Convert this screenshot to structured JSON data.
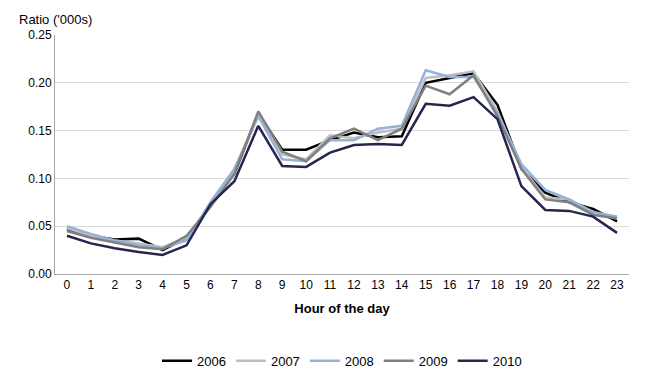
{
  "chart_data": {
    "type": "line",
    "y_label": "Ratio ('000s)",
    "x_label": "Hour of the day",
    "categories": [
      "0",
      "1",
      "2",
      "3",
      "4",
      "5",
      "6",
      "7",
      "8",
      "9",
      "10",
      "11",
      "12",
      "13",
      "14",
      "15",
      "16",
      "17",
      "18",
      "19",
      "20",
      "21",
      "22",
      "23"
    ],
    "series": [
      {
        "name": "2006",
        "color": "#000000",
        "values": [
          0.047,
          0.04,
          0.036,
          0.037,
          0.025,
          0.038,
          0.072,
          0.105,
          0.168,
          0.13,
          0.13,
          0.14,
          0.148,
          0.143,
          0.144,
          0.2,
          0.205,
          0.21,
          0.177,
          0.11,
          0.085,
          0.075,
          0.068,
          0.055
        ]
      },
      {
        "name": "2007",
        "color": "#bfbfbf",
        "values": [
          0.048,
          0.04,
          0.035,
          0.032,
          0.028,
          0.038,
          0.072,
          0.108,
          0.167,
          0.125,
          0.12,
          0.145,
          0.142,
          0.148,
          0.152,
          0.205,
          0.208,
          0.212,
          0.17,
          0.112,
          0.08,
          0.078,
          0.062,
          0.06
        ]
      },
      {
        "name": "2008",
        "color": "#95b3d7",
        "values": [
          0.05,
          0.042,
          0.035,
          0.03,
          0.027,
          0.035,
          0.075,
          0.11,
          0.165,
          0.12,
          0.118,
          0.14,
          0.14,
          0.152,
          0.155,
          0.213,
          0.206,
          0.206,
          0.168,
          0.115,
          0.088,
          0.078,
          0.065,
          0.06
        ]
      },
      {
        "name": "2009",
        "color": "#808080",
        "values": [
          0.045,
          0.038,
          0.033,
          0.028,
          0.026,
          0.04,
          0.07,
          0.105,
          0.17,
          0.128,
          0.118,
          0.142,
          0.152,
          0.14,
          0.152,
          0.197,
          0.188,
          0.208,
          0.165,
          0.11,
          0.078,
          0.075,
          0.062,
          0.058
        ]
      },
      {
        "name": "2010",
        "color": "#25254f",
        "values": [
          0.04,
          0.032,
          0.027,
          0.023,
          0.02,
          0.03,
          0.073,
          0.097,
          0.155,
          0.113,
          0.112,
          0.127,
          0.135,
          0.136,
          0.135,
          0.178,
          0.176,
          0.185,
          0.162,
          0.092,
          0.067,
          0.066,
          0.06,
          0.043
        ]
      }
    ],
    "ylim": [
      0,
      0.25
    ],
    "yticks": [
      {
        "value": 0,
        "label": "0.00"
      },
      0.05,
      {
        "value": 0.1,
        "label": "0.10"
      },
      0.15,
      {
        "value": 0.2,
        "label": "0.20"
      },
      0.25
    ],
    "grid": true,
    "legend": "bottom"
  }
}
